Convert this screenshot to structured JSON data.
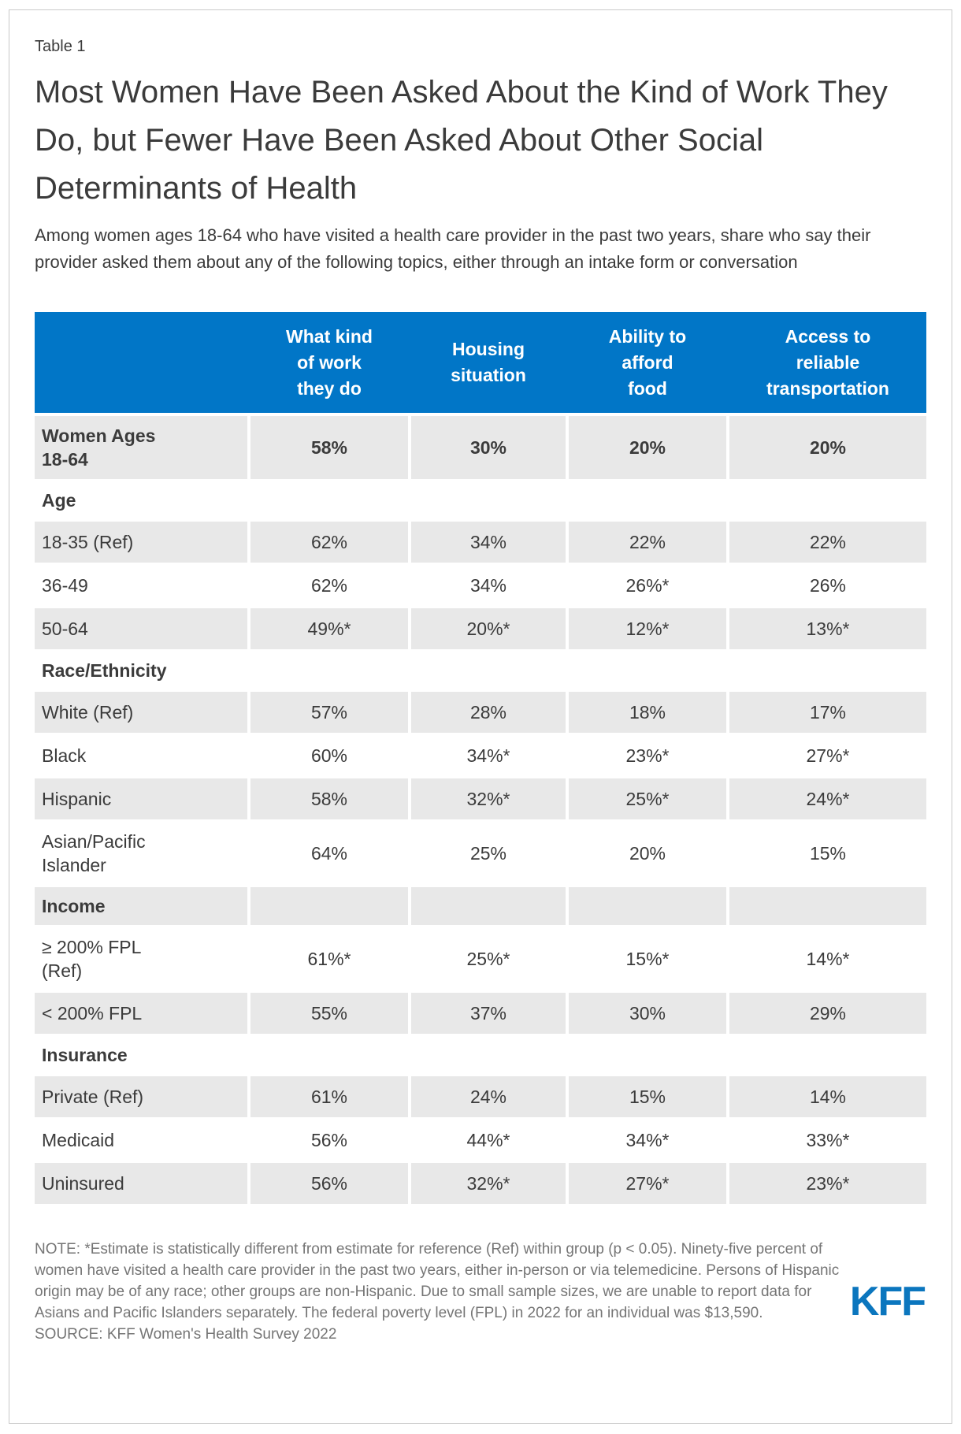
{
  "figure": {
    "table_label": "Table 1",
    "title": "Most Women Have Been Asked About the Kind of Work They Do, but Fewer Have Been Asked About Other Social Determinants of Health",
    "subtitle": "Among women ages 18-64 who have visited a health care provider in the past two years, share who say their provider asked them about any of the following topics, either through an intake form or conversation"
  },
  "chart_data": {
    "type": "table",
    "columns": [
      "What kind\nof work\nthey do",
      "Housing\nsituation",
      "Ability to\nafford\nfood",
      "Access to\nreliable\ntransportation"
    ],
    "rows": [
      {
        "label": "Women Ages 18-64",
        "values": [
          "58%",
          "30%",
          "20%",
          "20%"
        ]
      },
      {
        "label": "Age",
        "section": true
      },
      {
        "label": "18-35 (Ref)",
        "values": [
          "62%",
          "34%",
          "22%",
          "22%"
        ]
      },
      {
        "label": "36-49",
        "values": [
          "62%",
          "34%",
          "26%*",
          "26%"
        ]
      },
      {
        "label": "50-64",
        "values": [
          "49%*",
          "20%*",
          "12%*",
          "13%*"
        ]
      },
      {
        "label": "Race/Ethnicity",
        "section": true
      },
      {
        "label": "White (Ref)",
        "values": [
          "57%",
          "28%",
          "18%",
          "17%"
        ]
      },
      {
        "label": "Black",
        "values": [
          "60%",
          "34%*",
          "23%*",
          "27%*"
        ]
      },
      {
        "label": "Hispanic",
        "values": [
          "58%",
          "32%*",
          "25%*",
          "24%*"
        ]
      },
      {
        "label": "Asian/Pacific Islander",
        "values": [
          "64%",
          "25%",
          "20%",
          "15%"
        ]
      },
      {
        "label": "Income",
        "section": true
      },
      {
        "label": "≥ 200% FPL (Ref)",
        "values": [
          "61%*",
          "25%*",
          "15%*",
          "14%*"
        ]
      },
      {
        "label": "< 200% FPL",
        "values": [
          "55%",
          "37%",
          "30%",
          "29%"
        ]
      },
      {
        "label": "Insurance",
        "section": true
      },
      {
        "label": "Private (Ref)",
        "values": [
          "61%",
          "24%",
          "15%",
          "14%"
        ]
      },
      {
        "label": "Medicaid",
        "values": [
          "56%",
          "44%*",
          "34%*",
          "33%*"
        ]
      },
      {
        "label": "Uninsured",
        "values": [
          "56%",
          "32%*",
          "27%*",
          "23%*"
        ]
      }
    ]
  },
  "footer": {
    "note": "NOTE: *Estimate is statistically different from estimate for reference (Ref) within group (p < 0.05). Ninety-five percent of women have visited a health care provider in the past two years, either in-person or via telemedicine. Persons of Hispanic origin may be of any race; other groups are non-Hispanic. Due to small sample sizes, we are unable to report data for Asians and Pacific Islanders separately. The federal poverty level (FPL) in 2022 for an individual was $13,590.",
    "source": "SOURCE: KFF Women's Health Survey 2022",
    "logo_text": "KFF"
  },
  "colors": {
    "header_blue": "#0176C7",
    "shaded_row_gray": "#E8E8E8",
    "text_dark": "#3B3B3B",
    "note_gray": "#757575",
    "kff_logo_blue": "#0B76BE",
    "card_border_gray": "#C9C9C9"
  }
}
